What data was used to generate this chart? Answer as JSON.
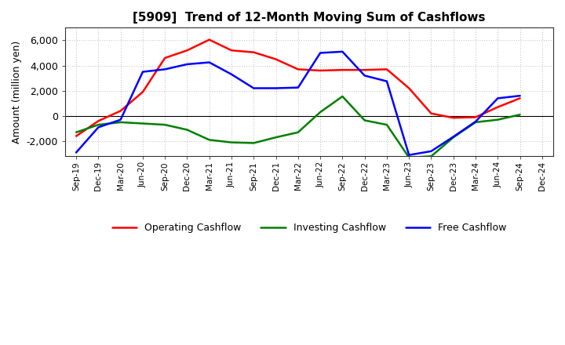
{
  "title": "[5909]  Trend of 12-Month Moving Sum of Cashflows",
  "ylabel": "Amount (million yen)",
  "background_color": "#ffffff",
  "plot_background": "#ffffff",
  "grid_color": "#bbbbbb",
  "x_labels": [
    "Sep-19",
    "Dec-19",
    "Mar-20",
    "Jun-20",
    "Sep-20",
    "Dec-20",
    "Mar-21",
    "Jun-21",
    "Sep-21",
    "Dec-21",
    "Mar-22",
    "Jun-22",
    "Sep-22",
    "Dec-22",
    "Mar-23",
    "Jun-23",
    "Sep-23",
    "Dec-23",
    "Mar-24",
    "Jun-24",
    "Sep-24",
    "Dec-24"
  ],
  "operating": [
    -1600,
    -400,
    400,
    1900,
    4600,
    5200,
    6050,
    5200,
    5050,
    4500,
    3700,
    3600,
    3650,
    3650,
    3700,
    2200,
    200,
    -150,
    -100,
    700,
    1400,
    null
  ],
  "investing": [
    -1300,
    -700,
    -500,
    -600,
    -700,
    -1100,
    -1900,
    -2100,
    -2150,
    -1700,
    -1300,
    300,
    1550,
    -350,
    -700,
    -3300,
    -3200,
    -1700,
    -500,
    -300,
    100,
    null
  ],
  "free": [
    -2900,
    -900,
    -300,
    3500,
    3700,
    4100,
    4250,
    3300,
    2200,
    2200,
    2250,
    5000,
    5100,
    3200,
    2750,
    -3100,
    -2800,
    -1650,
    -450,
    1400,
    1600,
    null
  ],
  "operating_color": "#ff0000",
  "investing_color": "#008000",
  "free_color": "#0000ff",
  "ylim": [
    -3200,
    7000
  ],
  "yticks": [
    -2000,
    0,
    2000,
    4000,
    6000
  ],
  "ytick_labels": [
    "-2,000",
    "0",
    "2,000",
    "4,000",
    "6,000"
  ],
  "linewidth": 1.8
}
